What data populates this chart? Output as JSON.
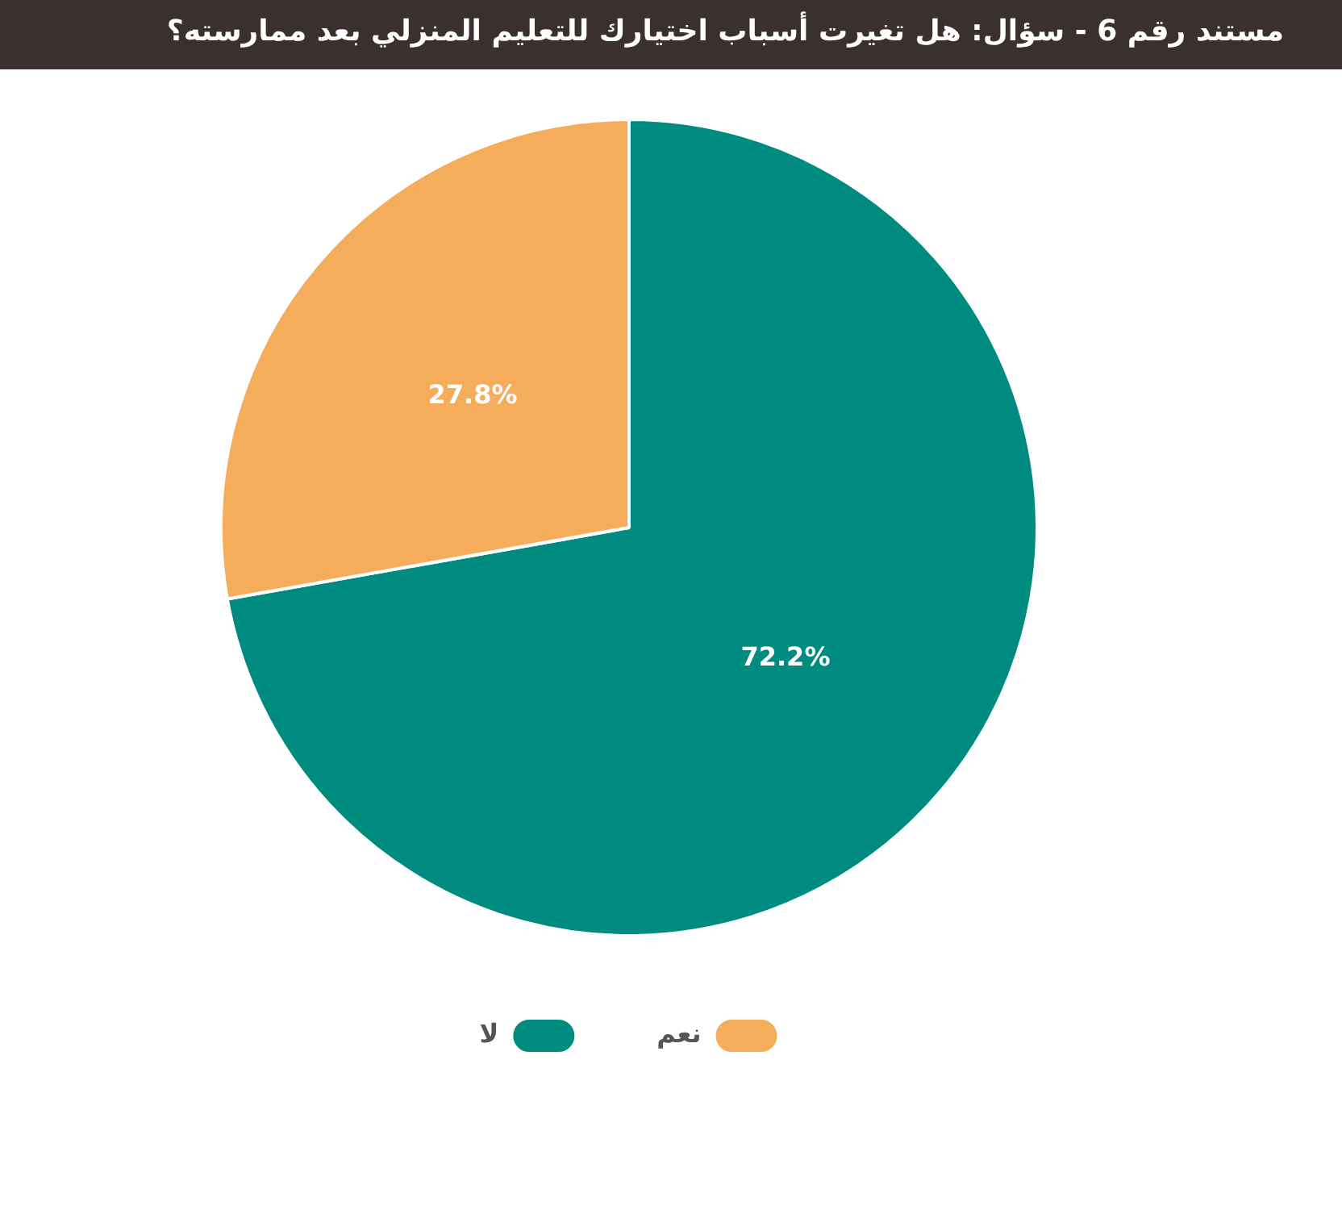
{
  "chart_data": {
    "type": "pie",
    "title": "مستند رقم 6 - سؤال: هل تغيرت أسباب اختيارك للتعليم المنزلي بعد ممارسته؟",
    "categories": [
      "لا",
      "نعم"
    ],
    "values": [
      72.2,
      27.8
    ],
    "colors": [
      "#008b80",
      "#f5ad5c"
    ],
    "value_labels": [
      "72.2%",
      "27.8%"
    ],
    "legend": "bottom"
  }
}
